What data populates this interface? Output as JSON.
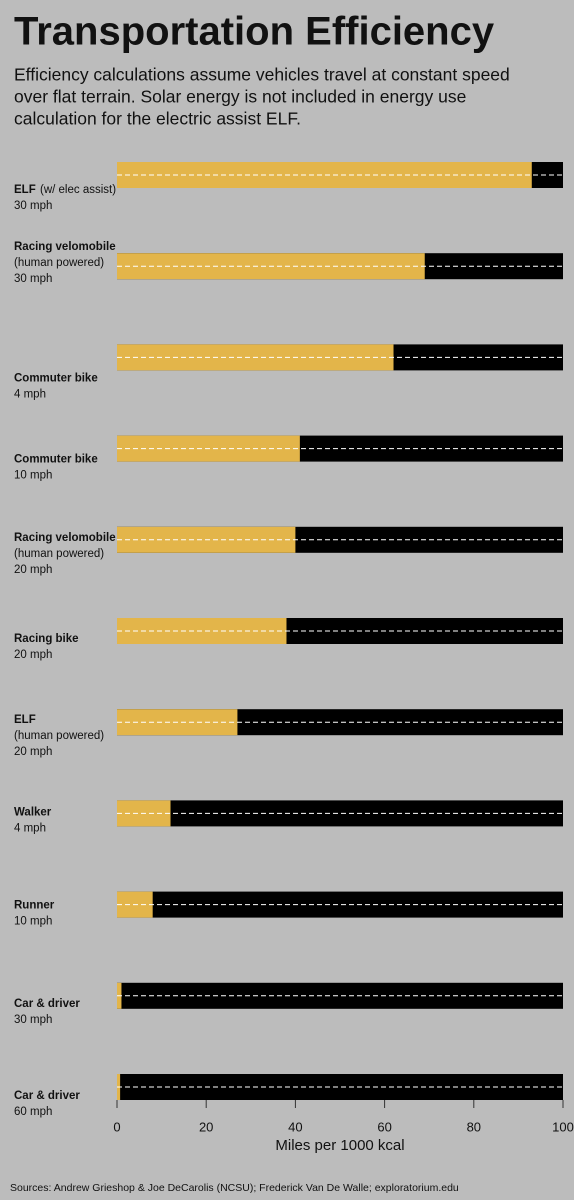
{
  "chart_data": {
    "type": "bar",
    "title": "Transportation Efficiency",
    "subtitle": [
      "Efficiency calculations assume vehicles travel at constant speed",
      "over flat terrain. Solar energy is not included in energy use",
      "calculation for the electric assist ELF."
    ],
    "categories": [
      [
        "ELF",
        "(w/ elec assist)",
        "30 mph"
      ],
      [
        "Racing velomobile",
        "(human powered)",
        "30 mph"
      ],
      [
        "Commuter bike",
        "4 mph"
      ],
      [
        "Commuter bike",
        "10 mph"
      ],
      [
        "Racing velomobile",
        "(human powered)",
        "20 mph"
      ],
      [
        "Racing bike",
        "20 mph"
      ],
      [
        "ELF",
        "(human powered)",
        "20 mph"
      ],
      [
        "Walker",
        "4 mph"
      ],
      [
        "Runner",
        "10 mph"
      ],
      [
        "Car & driver",
        "30 mph"
      ],
      [
        "Car & driver",
        "60 mph"
      ]
    ],
    "values": [
      93,
      69,
      62,
      41,
      40,
      38,
      27,
      12,
      8,
      1,
      0.7
    ],
    "color": "#e3b54a",
    "track_color": "#000000",
    "xlim": [
      0,
      100
    ],
    "xticks": [
      0,
      20,
      40,
      60,
      80,
      100
    ],
    "xlabel": "Miles per 1000 kcal",
    "source": "Sources: Andrew Grieshop & Joe DeCarolis (NCSU); Frederick Van De Walle; exploratorium.edu"
  }
}
